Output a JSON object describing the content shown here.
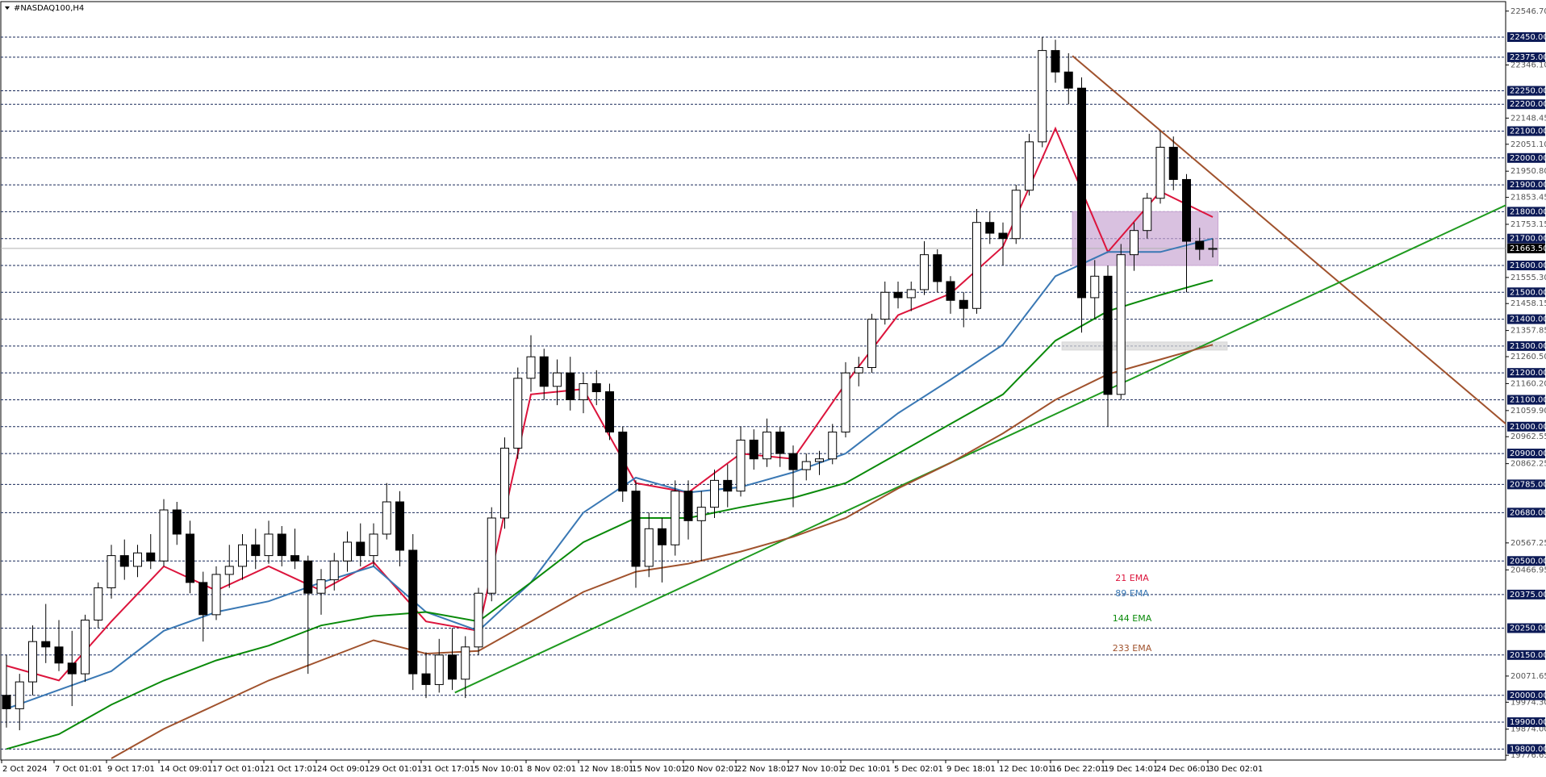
{
  "chart_data": {
    "type": "candlestick",
    "title": "#NASDAQ100,H4",
    "categories": [
      "2 Oct 2024",
      null,
      null,
      null,
      "7 Oct 01:01",
      null,
      null,
      null,
      "9 Oct 17:01",
      null,
      null,
      null,
      "14 Oct 09:01",
      null,
      null,
      null,
      "17 Oct 01:01",
      null,
      null,
      null,
      "21 Oct 17:01",
      null,
      null,
      null,
      "24 Oct 09:01",
      null,
      null,
      null,
      "29 Oct 01:01",
      null,
      null,
      null,
      "31 Oct 17:01",
      null,
      null,
      null,
      "5 Nov 10:01",
      null,
      null,
      null,
      "8 Nov 02:01",
      null,
      null,
      null,
      "12 Nov 18:01",
      null,
      null,
      null,
      "15 Nov 10:01",
      null,
      null,
      null,
      "20 Nov 02:01",
      null,
      null,
      null,
      "22 Nov 18:01",
      null,
      null,
      null,
      "27 Nov 10:01",
      null,
      null,
      null,
      "2 Dec 10:01",
      null,
      null,
      null,
      "5 Dec 02:01",
      null,
      null,
      null,
      "9 Dec 18:01",
      null,
      null,
      null,
      "12 Dec 10:01",
      null,
      null,
      null,
      "16 Dec 22:01",
      null,
      null,
      null,
      "19 Dec 14:01",
      null,
      null,
      null,
      "24 Dec 06:01",
      null,
      null,
      null,
      "30 Dec 02:01"
    ],
    "ohlc": [
      [
        20000,
        20150,
        19880,
        19950
      ],
      [
        19950,
        20080,
        19870,
        20050
      ],
      [
        20050,
        20260,
        20000,
        20200
      ],
      [
        20200,
        20340,
        20120,
        20180
      ],
      [
        20180,
        20280,
        20090,
        20120
      ],
      [
        20120,
        20240,
        19960,
        20080
      ],
      [
        20080,
        20300,
        20050,
        20280
      ],
      [
        20280,
        20420,
        20250,
        20400
      ],
      [
        20400,
        20560,
        20360,
        20520
      ],
      [
        20520,
        20580,
        20430,
        20480
      ],
      [
        20480,
        20560,
        20440,
        20530
      ],
      [
        20530,
        20600,
        20470,
        20500
      ],
      [
        20500,
        20730,
        20480,
        20690
      ],
      [
        20690,
        20720,
        20560,
        20600
      ],
      [
        20600,
        20650,
        20380,
        20420
      ],
      [
        20420,
        20460,
        20200,
        20300
      ],
      [
        20300,
        20480,
        20280,
        20450
      ],
      [
        20450,
        20560,
        20400,
        20480
      ],
      [
        20480,
        20600,
        20430,
        20560
      ],
      [
        20560,
        20620,
        20470,
        20520
      ],
      [
        20520,
        20650,
        20490,
        20600
      ],
      [
        20600,
        20630,
        20480,
        20520
      ],
      [
        20520,
        20620,
        20470,
        20500
      ],
      [
        20500,
        20520,
        20080,
        20380
      ],
      [
        20380,
        20470,
        20300,
        20430
      ],
      [
        20430,
        20530,
        20390,
        20500
      ],
      [
        20500,
        20610,
        20460,
        20570
      ],
      [
        20570,
        20640,
        20480,
        20520
      ],
      [
        20520,
        20640,
        20480,
        20600
      ],
      [
        20600,
        20790,
        20580,
        20720
      ],
      [
        20720,
        20760,
        20480,
        20540
      ],
      [
        20540,
        20600,
        20020,
        20080
      ],
      [
        20080,
        20160,
        19990,
        20040
      ],
      [
        20040,
        20210,
        20010,
        20150
      ],
      [
        20150,
        20250,
        20020,
        20060
      ],
      [
        20060,
        20220,
        19990,
        20180
      ],
      [
        20180,
        20400,
        20150,
        20380
      ],
      [
        20380,
        20700,
        20350,
        20660
      ],
      [
        20660,
        20960,
        20620,
        20920
      ],
      [
        20920,
        21220,
        20880,
        21180
      ],
      [
        21180,
        21340,
        21130,
        21260
      ],
      [
        21260,
        21290,
        21100,
        21150
      ],
      [
        21150,
        21250,
        21080,
        21200
      ],
      [
        21200,
        21260,
        21060,
        21100
      ],
      [
        21100,
        21200,
        21050,
        21160
      ],
      [
        21160,
        21210,
        21080,
        21130
      ],
      [
        21130,
        21160,
        20950,
        20980
      ],
      [
        20980,
        21000,
        20720,
        20760
      ],
      [
        20760,
        20800,
        20400,
        20480
      ],
      [
        20480,
        20680,
        20440,
        20620
      ],
      [
        20620,
        20660,
        20420,
        20560
      ],
      [
        20560,
        20800,
        20520,
        20760
      ],
      [
        20760,
        20800,
        20580,
        20650
      ],
      [
        20650,
        20760,
        20500,
        20700
      ],
      [
        20700,
        20840,
        20660,
        20800
      ],
      [
        20800,
        20860,
        20700,
        20760
      ],
      [
        20760,
        21000,
        20740,
        20950
      ],
      [
        20950,
        20990,
        20840,
        20880
      ],
      [
        20880,
        21030,
        20850,
        20980
      ],
      [
        20980,
        21000,
        20850,
        20900
      ],
      [
        20900,
        20930,
        20700,
        20840
      ],
      [
        20840,
        20900,
        20800,
        20870
      ],
      [
        20870,
        20910,
        20820,
        20880
      ],
      [
        20880,
        21010,
        20860,
        20980
      ],
      [
        20980,
        21240,
        20960,
        21200
      ],
      [
        21200,
        21260,
        21150,
        21220
      ],
      [
        21220,
        21420,
        21200,
        21400
      ],
      [
        21400,
        21540,
        21380,
        21500
      ],
      [
        21500,
        21540,
        21440,
        21480
      ],
      [
        21480,
        21540,
        21430,
        21510
      ],
      [
        21510,
        21690,
        21490,
        21640
      ],
      [
        21640,
        21660,
        21500,
        21540
      ],
      [
        21540,
        21560,
        21420,
        21470
      ],
      [
        21470,
        21500,
        21370,
        21440
      ],
      [
        21440,
        21810,
        21420,
        21760
      ],
      [
        21760,
        21800,
        21680,
        21720
      ],
      [
        21720,
        21760,
        21600,
        21700
      ],
      [
        21700,
        21900,
        21680,
        21880
      ],
      [
        21880,
        22090,
        21860,
        22060
      ],
      [
        22060,
        22450,
        22040,
        22400
      ],
      [
        22400,
        22440,
        22280,
        22320
      ],
      [
        22320,
        22390,
        22200,
        22260
      ],
      [
        22260,
        22300,
        21350,
        21480
      ],
      [
        21480,
        21620,
        21400,
        21560
      ],
      [
        21560,
        21600,
        21000,
        21120
      ],
      [
        21120,
        21680,
        21100,
        21640
      ],
      [
        21640,
        21760,
        21580,
        21730
      ],
      [
        21730,
        21870,
        21700,
        21850
      ],
      [
        21850,
        22100,
        21830,
        22040
      ],
      [
        22040,
        22080,
        21880,
        21920
      ],
      [
        21920,
        21940,
        21500,
        21690
      ],
      [
        21690,
        21740,
        21620,
        21660
      ],
      [
        21660,
        21700,
        21630,
        21663.5
      ]
    ],
    "ylim": [
      19759,
      22582
    ],
    "yticks": [
      {
        "value": 22546.7,
        "label": "22546.70"
      },
      {
        "value": 22346.1,
        "label": "22346.10"
      },
      {
        "value": 22148.45,
        "label": "22148.45"
      },
      {
        "value": 22051.1,
        "label": "22051.10"
      },
      {
        "value": 21950.8,
        "label": "21950.80"
      },
      {
        "value": 21853.45,
        "label": "21853.45"
      },
      {
        "value": 21753.15,
        "label": "21753.15"
      },
      {
        "value": 21555.3,
        "label": "21555.30"
      },
      {
        "value": 21458.15,
        "label": "21458.15"
      },
      {
        "value": 21357.85,
        "label": "21357.85"
      },
      {
        "value": 21260.5,
        "label": "21260.50"
      },
      {
        "value": 21160.2,
        "label": "21160.20"
      },
      {
        "value": 21059.9,
        "label": "21059.90"
      },
      {
        "value": 20962.55,
        "label": "20962.55"
      },
      {
        "value": 20862.25,
        "label": "20862.25"
      },
      {
        "value": 20567.25,
        "label": "20567.25"
      },
      {
        "value": 20466.95,
        "label": "20466.95"
      },
      {
        "value": 20071.65,
        "label": "20071.65"
      },
      {
        "value": 19974.3,
        "label": "19974.30"
      },
      {
        "value": 19874,
        "label": "19874.00"
      },
      {
        "value": 19776.65,
        "label": "19776.65"
      }
    ],
    "levels": [
      {
        "value": 22450,
        "label": "22450.00"
      },
      {
        "value": 22375,
        "label": "22375.00"
      },
      {
        "value": 22250,
        "label": "22250.00"
      },
      {
        "value": 22200,
        "label": "22200.00"
      },
      {
        "value": 22100,
        "label": "22100.00"
      },
      {
        "value": 22000,
        "label": "22000.00"
      },
      {
        "value": 21900,
        "label": "21900.00"
      },
      {
        "value": 21800,
        "label": "21800.00"
      },
      {
        "value": 21700,
        "label": "21700.00"
      },
      {
        "value": 21600,
        "label": "21600.00"
      },
      {
        "value": 21500,
        "label": "21500.00"
      },
      {
        "value": 21400,
        "label": "21400.00"
      },
      {
        "value": 21300,
        "label": "21300.00"
      },
      {
        "value": 21200,
        "label": "21200.00"
      },
      {
        "value": 21100,
        "label": "21100.00"
      },
      {
        "value": 21000,
        "label": "21000.00"
      },
      {
        "value": 20900,
        "label": "20900.00"
      },
      {
        "value": 20785,
        "label": "20785.00"
      },
      {
        "value": 20680,
        "label": "20680.00"
      },
      {
        "value": 20500,
        "label": "20500.00"
      },
      {
        "value": 20375,
        "label": "20375.00"
      },
      {
        "value": 20250,
        "label": "20250.00"
      },
      {
        "value": 20150,
        "label": "20150.00"
      },
      {
        "value": 20000,
        "label": "20000.00"
      },
      {
        "value": 19900,
        "label": "19900.00"
      },
      {
        "value": 19800,
        "label": "19800.00"
      }
    ],
    "current_price": {
      "value": 21663.5,
      "label": "21663.50"
    },
    "lines": [
      {
        "name": "21 EMA",
        "color": "#dc143c",
        "x": [
          0,
          4,
          8,
          12,
          16,
          20,
          24,
          28,
          32,
          36,
          40,
          44,
          48,
          52,
          56,
          60,
          64,
          68,
          72,
          76,
          80,
          84,
          88,
          92
        ],
        "values": [
          20110,
          20055,
          20275,
          20480,
          20390,
          20480,
          20390,
          20495,
          20275,
          20240,
          21120,
          21140,
          20790,
          20755,
          20900,
          20880,
          21160,
          21415,
          21495,
          21670,
          22110,
          21650,
          21875,
          21780
        ]
      },
      {
        "name": "89 EMA",
        "color": "#3a78b4",
        "x": [
          0,
          4,
          8,
          12,
          16,
          20,
          24,
          28,
          32,
          36,
          40,
          44,
          48,
          52,
          56,
          60,
          64,
          68,
          72,
          76,
          80,
          84,
          88,
          92
        ],
        "values": [
          19950,
          20020,
          20090,
          20240,
          20310,
          20350,
          20420,
          20480,
          20310,
          20240,
          20420,
          20680,
          20810,
          20755,
          20775,
          20830,
          20900,
          21050,
          21175,
          21305,
          21560,
          21650,
          21650,
          21700
        ]
      },
      {
        "name": "144 EMA",
        "color": "#0a8a0a",
        "x": [
          0,
          4,
          8,
          12,
          16,
          20,
          24,
          28,
          32,
          36,
          40,
          44,
          48,
          52,
          56,
          60,
          64,
          68,
          72,
          76,
          80,
          84,
          88,
          92
        ],
        "values": [
          19800,
          19855,
          19965,
          20055,
          20130,
          20185,
          20260,
          20295,
          20310,
          20275,
          20420,
          20570,
          20660,
          20660,
          20700,
          20735,
          20790,
          20900,
          21010,
          21120,
          21320,
          21430,
          21490,
          21545
        ]
      },
      {
        "name": "233 EMA",
        "color": "#a0522d",
        "x": [
          8,
          12,
          16,
          20,
          24,
          28,
          32,
          36,
          40,
          44,
          48,
          52,
          56,
          60,
          64,
          68,
          72,
          76,
          80,
          84,
          88,
          92
        ],
        "values": [
          19765,
          19875,
          19965,
          20055,
          20130,
          20205,
          20155,
          20165,
          20275,
          20385,
          20460,
          20490,
          20535,
          20590,
          20660,
          20770,
          20865,
          20975,
          21100,
          21195,
          21250,
          21305
        ]
      }
    ],
    "trendlines": [
      {
        "color": "#a0522d",
        "x": [
          81.3,
          114.6
        ],
        "values": [
          22380,
          21000
        ]
      },
      {
        "color": "#1f9a1f",
        "x": [
          34.2,
          114.6
        ],
        "values": [
          20010,
          21830
        ]
      }
    ],
    "zones": [
      {
        "color": "#c9a6d3",
        "x": [
          81.3,
          92.4
        ],
        "values": [
          21600,
          21800
        ]
      },
      {
        "color": "#d6d6d6",
        "x": [
          80.5,
          93.1
        ],
        "values": [
          21285,
          21315
        ]
      }
    ]
  }
}
